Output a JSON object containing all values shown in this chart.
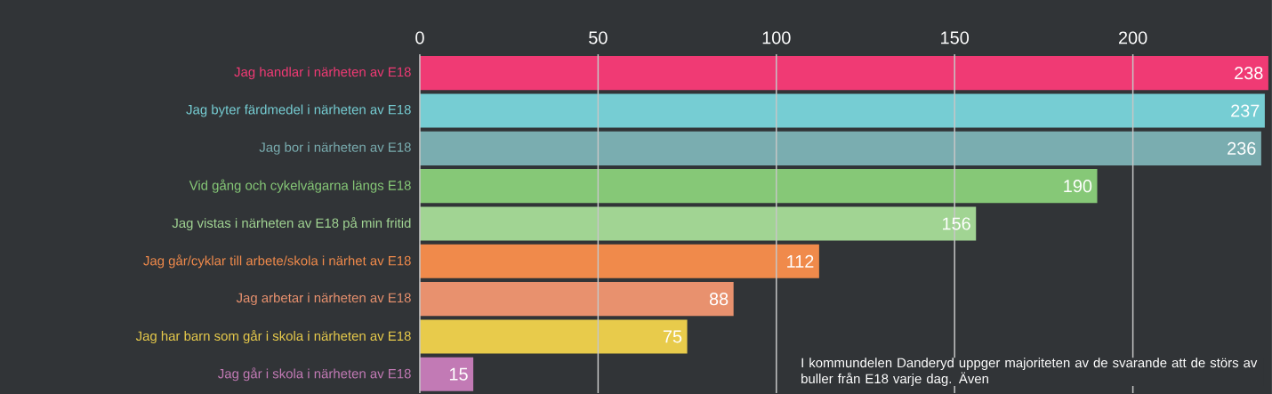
{
  "chart_data": {
    "type": "bar",
    "orientation": "horizontal",
    "categories": [
      "Jag handlar i närheten av E18",
      "Jag byter färdmedel i närheten av E18",
      "Jag bor i närheten av E18",
      "Vid gång och cykelvägarna längs E18",
      "Jag vistas i närheten av E18 på min fritid",
      "Jag går/cyklar till arbete/skola i närhet av E18",
      "Jag arbetar i närheten av E18",
      "Jag har barn som går i skola i närheten av E18",
      "Jag går i skola i närheten av E18"
    ],
    "values": [
      238,
      237,
      236,
      190,
      156,
      112,
      88,
      75,
      15
    ],
    "colors": [
      "#f03a74",
      "#76cdd3",
      "#7aadb0",
      "#86c877",
      "#a1d493",
      "#f08a4b",
      "#e8916e",
      "#e8cb4b",
      "#c27ab5"
    ],
    "xlim": [
      0,
      239
    ],
    "xticks": [
      0,
      50,
      100,
      150,
      200
    ],
    "grid": "x",
    "data_labels": true,
    "annotations": [
      "I kommundelen Danderyd uppger majoriteten av de svarande att de störs av buller från E18 varje dag. Även"
    ]
  }
}
